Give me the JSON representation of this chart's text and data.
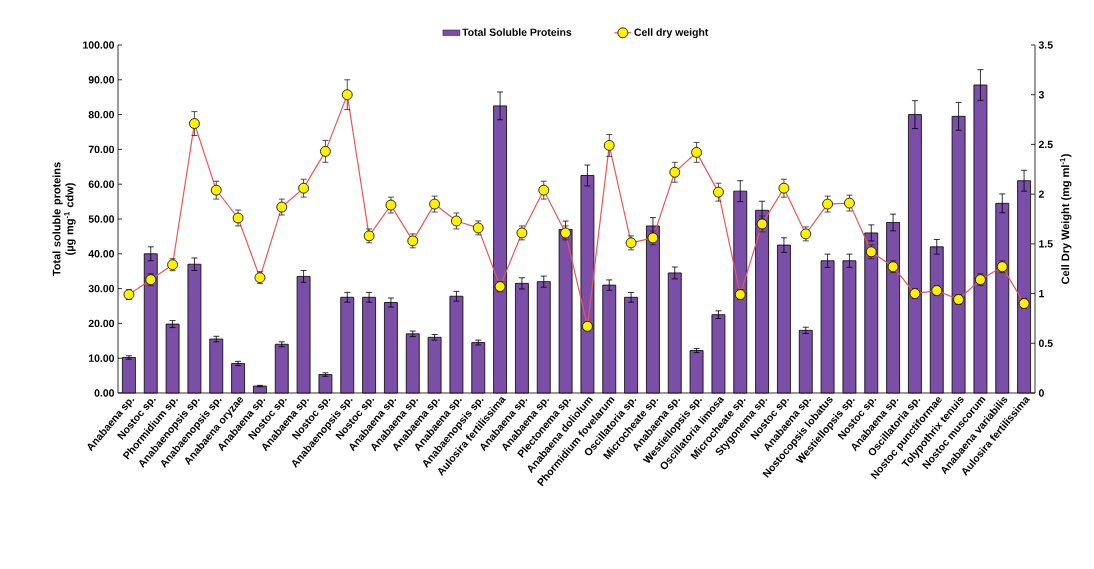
{
  "chart_data": {
    "type": "bar",
    "ylabel": "Total soluble proteins (µg mg$^{-1}$ cdw)",
    "y2label": "Cell Dry Weight (mg ml$^{-1}$)",
    "legend": "top",
    "grid": false,
    "categories": [
      "Anabaena sp.",
      "Nostoc sp.",
      "Phormidium sp.",
      "Anabaenopsis sp.",
      "Anabaenopsis sp.",
      "Anabaena oryzae",
      "Anabaena sp.",
      "Nostoc sp.",
      "Anabaena sp.",
      "Nostoc sp.",
      "Anabaenopsis sp.",
      "Nostoc sp.",
      "Anabaena sp.",
      "Anabaena sp.",
      "Anabaena sp.",
      "Anabaena sp.",
      "Anabaenopsis sp.",
      "Aulosira fertilissima",
      "Anabaena sp.",
      "Anabaena sp.",
      "Plectonema sp.",
      "Anabaena doliolum",
      "Phormidium fovelarum",
      "Oscillatoria sp.",
      "Microcheate sp.",
      "Anabaena sp.",
      "Westiellopsis sp.",
      "Oscillatoria limosa",
      "Microcheate sp.",
      "Stygonema sp.",
      "Nostoc sp.",
      "Anabaena sp.",
      "Nostocopsis lobatus",
      "Westiellopsis sp.",
      "Nostoc sp.",
      "Anabaena sp.",
      "Oscillatoria sp.",
      "Nostoc punctiformae",
      "Tolypothrix  tenuis",
      "Nostoc muscorum",
      "Anabaena variabilis",
      "Aulosira fertilissima"
    ],
    "ylim": [
      0,
      100
    ],
    "yticks": [
      {
        "value": 0,
        "label": "0.00"
      },
      {
        "value": 10,
        "label": "10.00"
      },
      {
        "value": 20,
        "label": "20.00"
      },
      {
        "value": 30,
        "label": "30.00"
      },
      {
        "value": 40,
        "label": "40.00"
      },
      {
        "value": 50,
        "label": "50.00"
      },
      {
        "value": 60,
        "label": "60.00"
      },
      {
        "value": 70,
        "label": "70.00"
      },
      {
        "value": 80,
        "label": "80.00"
      },
      {
        "value": 90,
        "label": "90.00"
      },
      {
        "value": 100,
        "label": "100.00"
      }
    ],
    "y2lim": [
      0,
      3.5
    ],
    "y2ticks": [
      0,
      0.5,
      1,
      1.5,
      2,
      2.5,
      3,
      3.5
    ],
    "series": [
      {
        "name": "Total Soluble Proteins",
        "color": "#7b4fa8",
        "values": [
          10.2,
          40,
          19.8,
          37,
          15.5,
          8.5,
          2,
          14,
          33.5,
          5.3,
          27.5,
          27.5,
          26,
          17,
          16,
          27.8,
          14.5,
          82.5,
          31.5,
          32,
          47,
          62.5,
          31,
          27.5,
          48,
          34.5,
          12.2,
          22.5,
          58,
          52.5,
          42.5,
          18,
          38,
          38,
          46,
          49,
          80,
          42,
          79.5,
          88.5,
          54.5,
          61
        ],
        "errors": [
          0.5,
          2,
          1,
          1.8,
          0.8,
          0.6,
          0.2,
          0.7,
          1.7,
          0.5,
          1.4,
          1.4,
          1.3,
          0.8,
          0.8,
          1.4,
          0.7,
          4,
          1.6,
          1.6,
          2.4,
          3,
          1.5,
          1.4,
          2.4,
          1.7,
          0.6,
          1.1,
          3,
          2.6,
          2.1,
          0.9,
          1.9,
          1.9,
          2.3,
          2.4,
          4,
          2.1,
          4,
          4.4,
          2.7,
          3
        ]
      },
      {
        "name": "Cell dry weight",
        "type": "line",
        "axis": "y2",
        "color": "#e8585a",
        "marker": "circle",
        "values": [
          0.99,
          1.14,
          1.29,
          2.71,
          2.04,
          1.76,
          1.16,
          1.87,
          2.06,
          2.43,
          3.0,
          1.58,
          1.89,
          1.53,
          1.9,
          1.73,
          1.66,
          1.07,
          1.61,
          2.04,
          1.61,
          0.67,
          2.49,
          1.51,
          1.56,
          2.22,
          2.42,
          2.02,
          0.99,
          1.7,
          2.06,
          1.6,
          1.9,
          1.91,
          1.42,
          1.27,
          1.0,
          1.03,
          0.94,
          1.14,
          1.27,
          0.9
        ],
        "errors": [
          0.05,
          0.06,
          0.06,
          0.12,
          0.09,
          0.08,
          0.06,
          0.08,
          0.09,
          0.11,
          0.15,
          0.07,
          0.08,
          0.07,
          0.08,
          0.08,
          0.07,
          0.05,
          0.07,
          0.09,
          0.07,
          0.04,
          0.11,
          0.07,
          0.07,
          0.1,
          0.1,
          0.09,
          0.05,
          0.08,
          0.09,
          0.07,
          0.08,
          0.08,
          0.07,
          0.06,
          0.05,
          0.05,
          0.05,
          0.06,
          0.06,
          0.05
        ]
      }
    ]
  }
}
